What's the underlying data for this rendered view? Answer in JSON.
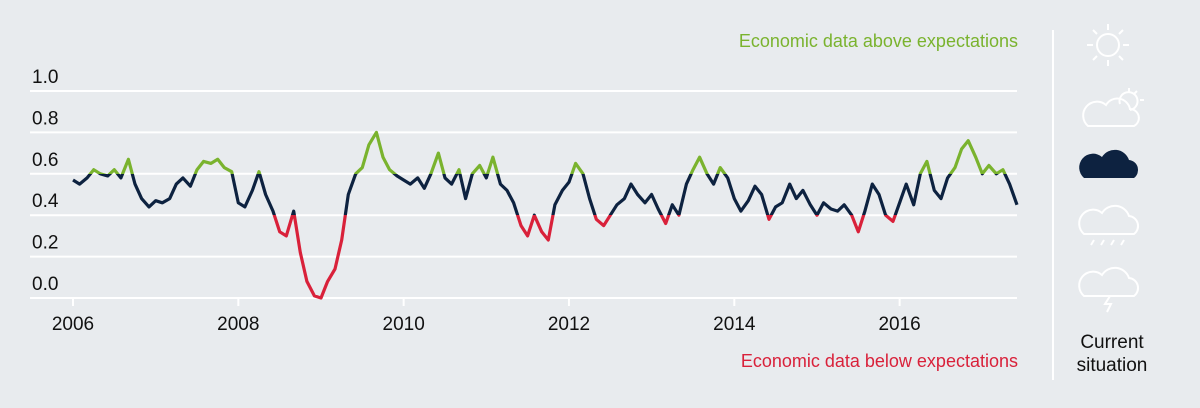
{
  "chart_data": {
    "type": "line",
    "x": [
      2006,
      2006.08,
      2006.17,
      2006.25,
      2006.33,
      2006.42,
      2006.5,
      2006.58,
      2006.67,
      2006.75,
      2006.83,
      2006.92,
      2007,
      2007.08,
      2007.17,
      2007.25,
      2007.33,
      2007.42,
      2007.5,
      2007.58,
      2007.67,
      2007.75,
      2007.83,
      2007.92,
      2008,
      2008.08,
      2008.17,
      2008.25,
      2008.33,
      2008.42,
      2008.5,
      2008.58,
      2008.67,
      2008.75,
      2008.83,
      2008.92,
      2009,
      2009.08,
      2009.17,
      2009.25,
      2009.33,
      2009.42,
      2009.5,
      2009.58,
      2009.67,
      2009.75,
      2009.83,
      2009.92,
      2010,
      2010.08,
      2010.17,
      2010.25,
      2010.33,
      2010.42,
      2010.5,
      2010.58,
      2010.67,
      2010.75,
      2010.83,
      2010.92,
      2011,
      2011.08,
      2011.17,
      2011.25,
      2011.33,
      2011.42,
      2011.5,
      2011.58,
      2011.67,
      2011.75,
      2011.83,
      2011.92,
      2012,
      2012.08,
      2012.17,
      2012.25,
      2012.33,
      2012.42,
      2012.5,
      2012.58,
      2012.67,
      2012.75,
      2012.83,
      2012.92,
      2013,
      2013.08,
      2013.17,
      2013.25,
      2013.33,
      2013.42,
      2013.5,
      2013.58,
      2013.67,
      2013.75,
      2013.83,
      2013.92,
      2014,
      2014.08,
      2014.17,
      2014.25,
      2014.33,
      2014.42,
      2014.5,
      2014.58,
      2014.67,
      2014.75,
      2014.83,
      2014.92,
      2015,
      2015.08,
      2015.17,
      2015.25,
      2015.33,
      2015.42,
      2015.5,
      2015.58,
      2015.67,
      2015.75,
      2015.83,
      2015.92,
      2016,
      2016.08,
      2016.17,
      2016.25,
      2016.33,
      2016.42,
      2016.5,
      2016.58,
      2016.67,
      2016.75,
      2016.83,
      2016.92,
      2017,
      2017.08,
      2017.17,
      2017.25,
      2017.33,
      2017.42
    ],
    "series": [
      {
        "color": "#0d2240",
        "values": [
          0.57,
          0.55,
          0.58,
          0.62,
          0.6,
          0.59,
          0.62,
          0.58,
          0.67,
          0.55,
          0.48,
          0.44,
          0.47,
          0.46,
          0.48,
          0.55,
          0.58,
          0.54,
          0.62,
          0.66,
          0.65,
          0.67,
          0.63,
          0.61,
          0.46,
          0.44,
          0.52,
          0.61,
          0.5,
          0.42,
          0.32,
          0.3,
          0.42,
          0.22,
          0.08,
          0.01,
          0.0,
          0.08,
          0.14,
          0.28,
          0.5,
          0.6,
          0.63,
          0.74,
          0.8,
          0.68,
          0.62,
          0.59,
          0.57,
          0.55,
          0.58,
          0.53,
          0.6,
          0.7,
          0.58,
          0.55,
          0.62,
          0.48,
          0.6,
          0.64,
          0.58,
          0.68,
          0.55,
          0.52,
          0.46,
          0.35,
          0.3,
          0.4,
          0.32,
          0.28,
          0.45,
          0.52,
          0.56,
          0.65,
          0.6,
          0.48,
          0.38,
          0.35,
          0.4,
          0.45,
          0.48,
          0.55,
          0.5,
          0.46,
          0.5,
          0.43,
          0.36,
          0.45,
          0.4,
          0.55,
          0.62,
          0.68,
          0.6,
          0.55,
          0.63,
          0.58,
          0.48,
          0.42,
          0.47,
          0.54,
          0.5,
          0.38,
          0.44,
          0.46,
          0.55,
          0.48,
          0.52,
          0.45,
          0.4,
          0.46,
          0.43,
          0.42,
          0.45,
          0.4,
          0.32,
          0.42,
          0.55,
          0.5,
          0.4,
          0.37,
          0.46,
          0.55,
          0.45,
          0.6,
          0.66,
          0.52,
          0.48,
          0.58,
          0.63,
          0.72,
          0.76,
          0.68,
          0.6,
          0.64,
          0.6,
          0.62,
          0.55,
          0.45
        ]
      }
    ],
    "upper_threshold": 0.6,
    "above_color": "#7ab32e",
    "lower_threshold": 0.4,
    "below_color": "#d9213a",
    "annotations": [
      "Economic data above expectations",
      "Economic data below expectations"
    ],
    "side_label": [
      "Current",
      "situation"
    ],
    "xlim": [
      2006,
      2017.42
    ],
    "xticks": [
      2006,
      2008,
      2010,
      2012,
      2014,
      2016
    ],
    "ylim": [
      0,
      1
    ],
    "yticks": [
      {
        "value": 0,
        "label": "0.0"
      },
      0.2,
      0.4,
      0.6,
      0.8,
      {
        "value": 1,
        "label": "1.0"
      }
    ],
    "grid": true
  }
}
